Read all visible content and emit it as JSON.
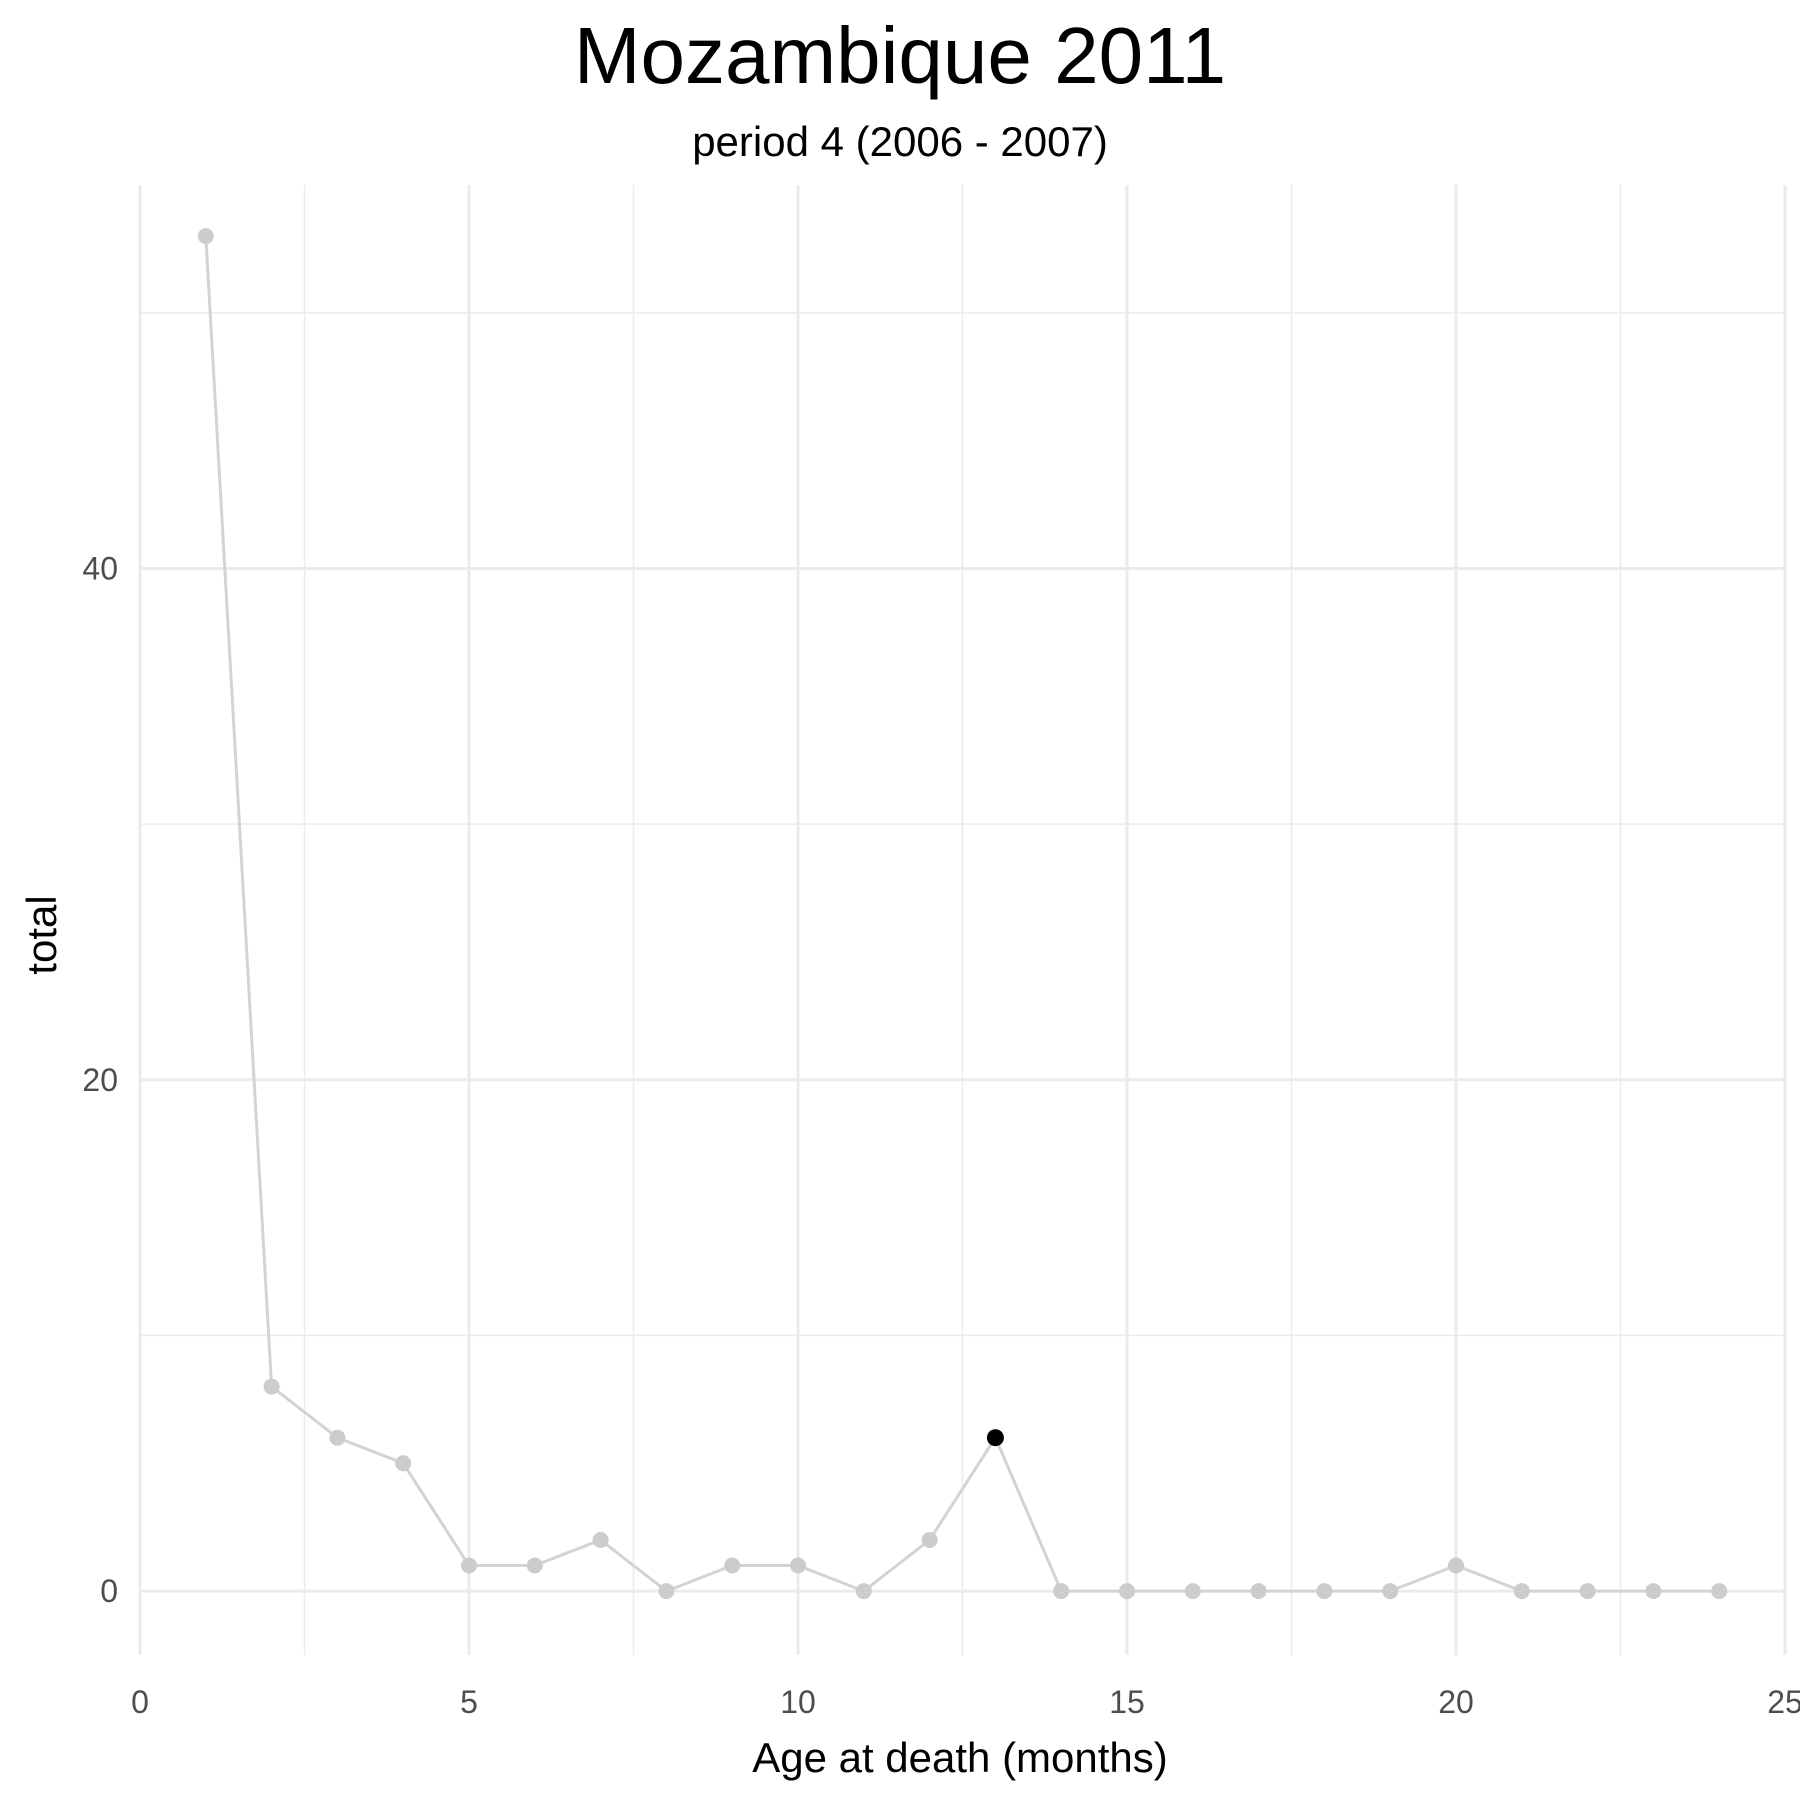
{
  "chart_data": {
    "type": "line",
    "title": "Mozambique 2011",
    "subtitle": "period 4 (2006 - 2007)",
    "xlabel": "Age at death (months)",
    "ylabel": "total",
    "xlim": [
      0,
      25
    ],
    "ylim": [
      -2.5,
      55
    ],
    "x_ticks": [
      0,
      5,
      10,
      15,
      20,
      25
    ],
    "y_ticks": [
      0,
      20,
      40
    ],
    "grid": true,
    "series": [
      {
        "x": [
          1,
          2,
          3,
          4,
          5,
          6,
          7,
          8,
          9,
          10,
          11,
          12,
          13,
          14,
          15,
          16,
          17,
          18,
          19,
          20,
          21,
          22,
          23,
          24
        ],
        "values": [
          53,
          8,
          6,
          5,
          1,
          1,
          2,
          0,
          1,
          1,
          0,
          2,
          6,
          0,
          0,
          0,
          0,
          0,
          0,
          1,
          0,
          0,
          0,
          0
        ]
      }
    ],
    "highlight": {
      "x": 13,
      "value": 6
    },
    "colors": {
      "line": "#d3d3d3",
      "point": "#cccccc",
      "highlight": "#000000",
      "grid": "#ebebeb"
    }
  }
}
